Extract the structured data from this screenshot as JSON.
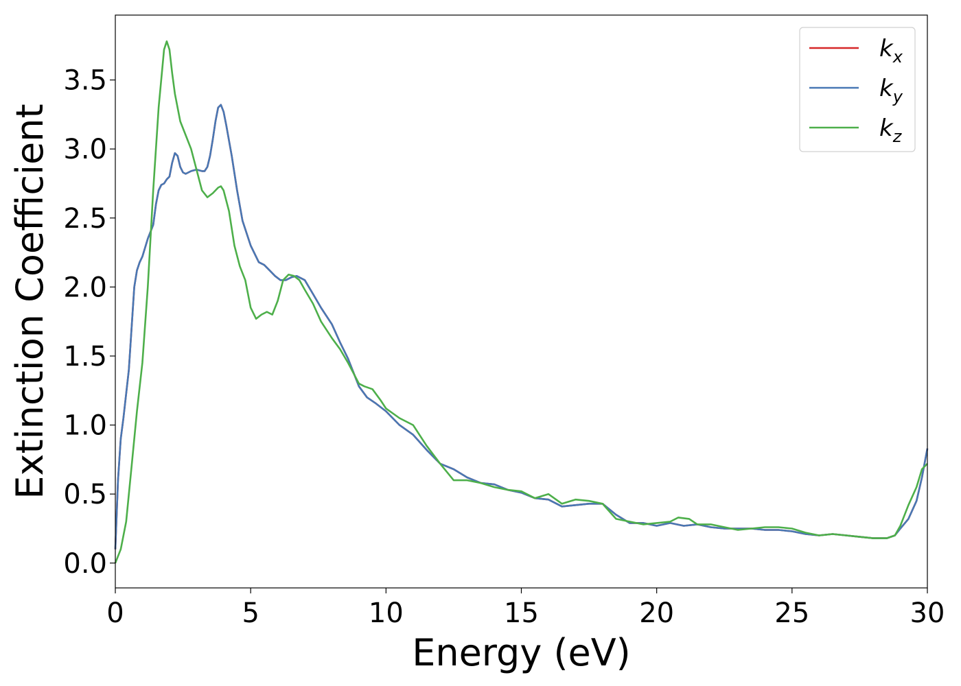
{
  "chart_data": {
    "type": "line",
    "title": "",
    "xlabel": "Energy (eV)",
    "ylabel": "Extinction Coefficient",
    "xlim": [
      0,
      30
    ],
    "ylim": [
      -0.18,
      3.97
    ],
    "xticks": [
      "0",
      "5",
      "10",
      "15",
      "20",
      "25",
      "30"
    ],
    "yticks": [
      "0.0",
      "0.5",
      "1.0",
      "1.5",
      "2.0",
      "2.5",
      "3.0",
      "3.5"
    ],
    "grid": false,
    "legend_position": "top-right",
    "series": [
      {
        "name": "k",
        "subscript": "x",
        "color": "#d62728",
        "x": [
          0,
          0.1,
          0.2,
          0.3,
          0.5,
          0.7,
          0.8,
          0.9,
          1.0,
          1.2,
          1.4,
          1.5,
          1.6,
          1.7,
          1.8,
          1.9,
          2.0,
          2.1,
          2.2,
          2.3,
          2.4,
          2.5,
          2.6,
          2.8,
          3.0,
          3.2,
          3.3,
          3.4,
          3.5,
          3.6,
          3.7,
          3.8,
          3.9,
          4.0,
          4.1,
          4.3,
          4.5,
          4.7,
          5.0,
          5.3,
          5.5,
          5.7,
          5.9,
          6.1,
          6.3,
          6.5,
          6.7,
          7.0,
          7.3,
          7.6,
          8.0,
          8.3,
          8.6,
          9.0,
          9.3,
          9.6,
          10.0,
          10.5,
          11.0,
          11.5,
          12.0,
          12.5,
          13.0,
          13.5,
          14.0,
          14.5,
          15.0,
          15.5,
          16.0,
          16.5,
          17.0,
          17.5,
          18.0,
          18.5,
          19.0,
          19.5,
          20.0,
          20.5,
          21.0,
          21.5,
          22.0,
          22.5,
          23.0,
          23.5,
          24.0,
          24.5,
          25.0,
          25.5,
          26.0,
          26.5,
          27.0,
          27.5,
          28.0,
          28.5,
          28.8,
          29.0,
          29.3,
          29.6,
          29.8,
          30.0
        ],
        "y": [
          0.1,
          0.6,
          0.9,
          1.05,
          1.4,
          2.0,
          2.12,
          2.18,
          2.22,
          2.35,
          2.45,
          2.6,
          2.7,
          2.74,
          2.75,
          2.78,
          2.8,
          2.9,
          2.97,
          2.95,
          2.87,
          2.83,
          2.82,
          2.84,
          2.85,
          2.84,
          2.84,
          2.87,
          2.95,
          3.07,
          3.2,
          3.3,
          3.32,
          3.27,
          3.17,
          2.95,
          2.7,
          2.48,
          2.3,
          2.18,
          2.16,
          2.12,
          2.08,
          2.05,
          2.05,
          2.07,
          2.08,
          2.05,
          1.95,
          1.85,
          1.73,
          1.6,
          1.48,
          1.28,
          1.2,
          1.16,
          1.1,
          1.0,
          0.93,
          0.82,
          0.72,
          0.68,
          0.62,
          0.58,
          0.57,
          0.53,
          0.51,
          0.47,
          0.46,
          0.41,
          0.42,
          0.43,
          0.43,
          0.35,
          0.29,
          0.29,
          0.27,
          0.29,
          0.27,
          0.28,
          0.26,
          0.25,
          0.25,
          0.25,
          0.24,
          0.24,
          0.23,
          0.21,
          0.2,
          0.21,
          0.2,
          0.19,
          0.18,
          0.18,
          0.2,
          0.25,
          0.32,
          0.45,
          0.62,
          0.83
        ]
      },
      {
        "name": "k",
        "subscript": "y",
        "color": "#4878b4",
        "x": [
          0,
          0.1,
          0.2,
          0.3,
          0.5,
          0.7,
          0.8,
          0.9,
          1.0,
          1.2,
          1.4,
          1.5,
          1.6,
          1.7,
          1.8,
          1.9,
          2.0,
          2.1,
          2.2,
          2.3,
          2.4,
          2.5,
          2.6,
          2.8,
          3.0,
          3.2,
          3.3,
          3.4,
          3.5,
          3.6,
          3.7,
          3.8,
          3.9,
          4.0,
          4.1,
          4.3,
          4.5,
          4.7,
          5.0,
          5.3,
          5.5,
          5.7,
          5.9,
          6.1,
          6.3,
          6.5,
          6.7,
          7.0,
          7.3,
          7.6,
          8.0,
          8.3,
          8.6,
          9.0,
          9.3,
          9.6,
          10.0,
          10.5,
          11.0,
          11.5,
          12.0,
          12.5,
          13.0,
          13.5,
          14.0,
          14.5,
          15.0,
          15.5,
          16.0,
          16.5,
          17.0,
          17.5,
          18.0,
          18.5,
          19.0,
          19.5,
          20.0,
          20.5,
          21.0,
          21.5,
          22.0,
          22.5,
          23.0,
          23.5,
          24.0,
          24.5,
          25.0,
          25.5,
          26.0,
          26.5,
          27.0,
          27.5,
          28.0,
          28.5,
          28.8,
          29.0,
          29.3,
          29.6,
          29.8,
          30.0
        ],
        "y": [
          0.1,
          0.6,
          0.9,
          1.05,
          1.4,
          2.0,
          2.12,
          2.18,
          2.22,
          2.35,
          2.45,
          2.6,
          2.7,
          2.74,
          2.75,
          2.78,
          2.8,
          2.9,
          2.97,
          2.95,
          2.87,
          2.83,
          2.82,
          2.84,
          2.85,
          2.84,
          2.84,
          2.87,
          2.95,
          3.07,
          3.2,
          3.3,
          3.32,
          3.27,
          3.17,
          2.95,
          2.7,
          2.48,
          2.3,
          2.18,
          2.16,
          2.12,
          2.08,
          2.05,
          2.05,
          2.07,
          2.08,
          2.05,
          1.95,
          1.85,
          1.73,
          1.6,
          1.48,
          1.28,
          1.2,
          1.16,
          1.1,
          1.0,
          0.93,
          0.82,
          0.72,
          0.68,
          0.62,
          0.58,
          0.57,
          0.53,
          0.51,
          0.47,
          0.46,
          0.41,
          0.42,
          0.43,
          0.43,
          0.35,
          0.29,
          0.29,
          0.27,
          0.29,
          0.27,
          0.28,
          0.26,
          0.25,
          0.25,
          0.25,
          0.24,
          0.24,
          0.23,
          0.21,
          0.2,
          0.21,
          0.2,
          0.19,
          0.18,
          0.18,
          0.2,
          0.25,
          0.32,
          0.45,
          0.62,
          0.83
        ]
      },
      {
        "name": "k",
        "subscript": "z",
        "color": "#4daf4a",
        "x": [
          0,
          0.2,
          0.4,
          0.6,
          0.8,
          1.0,
          1.2,
          1.4,
          1.6,
          1.8,
          1.9,
          2.0,
          2.1,
          2.2,
          2.4,
          2.6,
          2.8,
          3.0,
          3.2,
          3.4,
          3.6,
          3.8,
          3.9,
          4.0,
          4.2,
          4.4,
          4.6,
          4.8,
          5.0,
          5.2,
          5.4,
          5.6,
          5.8,
          6.0,
          6.2,
          6.4,
          6.6,
          6.8,
          7.0,
          7.3,
          7.6,
          8.0,
          8.3,
          8.6,
          9.0,
          9.2,
          9.5,
          9.8,
          10.0,
          10.5,
          11.0,
          11.5,
          12.0,
          12.5,
          13.0,
          13.5,
          14.0,
          14.5,
          15.0,
          15.5,
          16.0,
          16.5,
          17.0,
          17.5,
          18.0,
          18.5,
          19.0,
          19.5,
          20.0,
          20.5,
          20.8,
          21.2,
          21.5,
          22.0,
          22.5,
          23.0,
          23.5,
          24.0,
          24.5,
          25.0,
          25.5,
          26.0,
          26.5,
          27.0,
          27.5,
          28.0,
          28.5,
          28.8,
          29.0,
          29.3,
          29.6,
          29.8,
          30.0
        ],
        "y": [
          0.0,
          0.1,
          0.3,
          0.7,
          1.1,
          1.45,
          2.0,
          2.7,
          3.3,
          3.72,
          3.78,
          3.72,
          3.55,
          3.4,
          3.2,
          3.1,
          3.0,
          2.85,
          2.7,
          2.65,
          2.68,
          2.72,
          2.73,
          2.7,
          2.55,
          2.3,
          2.15,
          2.05,
          1.85,
          1.77,
          1.8,
          1.82,
          1.8,
          1.9,
          2.05,
          2.09,
          2.08,
          2.05,
          1.98,
          1.88,
          1.75,
          1.63,
          1.55,
          1.45,
          1.3,
          1.28,
          1.26,
          1.18,
          1.12,
          1.05,
          1.0,
          0.85,
          0.72,
          0.6,
          0.6,
          0.58,
          0.55,
          0.53,
          0.52,
          0.47,
          0.5,
          0.43,
          0.46,
          0.45,
          0.43,
          0.32,
          0.3,
          0.28,
          0.29,
          0.3,
          0.33,
          0.32,
          0.28,
          0.28,
          0.26,
          0.24,
          0.25,
          0.26,
          0.26,
          0.25,
          0.22,
          0.2,
          0.21,
          0.2,
          0.19,
          0.18,
          0.18,
          0.2,
          0.27,
          0.42,
          0.55,
          0.68,
          0.72
        ]
      }
    ]
  }
}
